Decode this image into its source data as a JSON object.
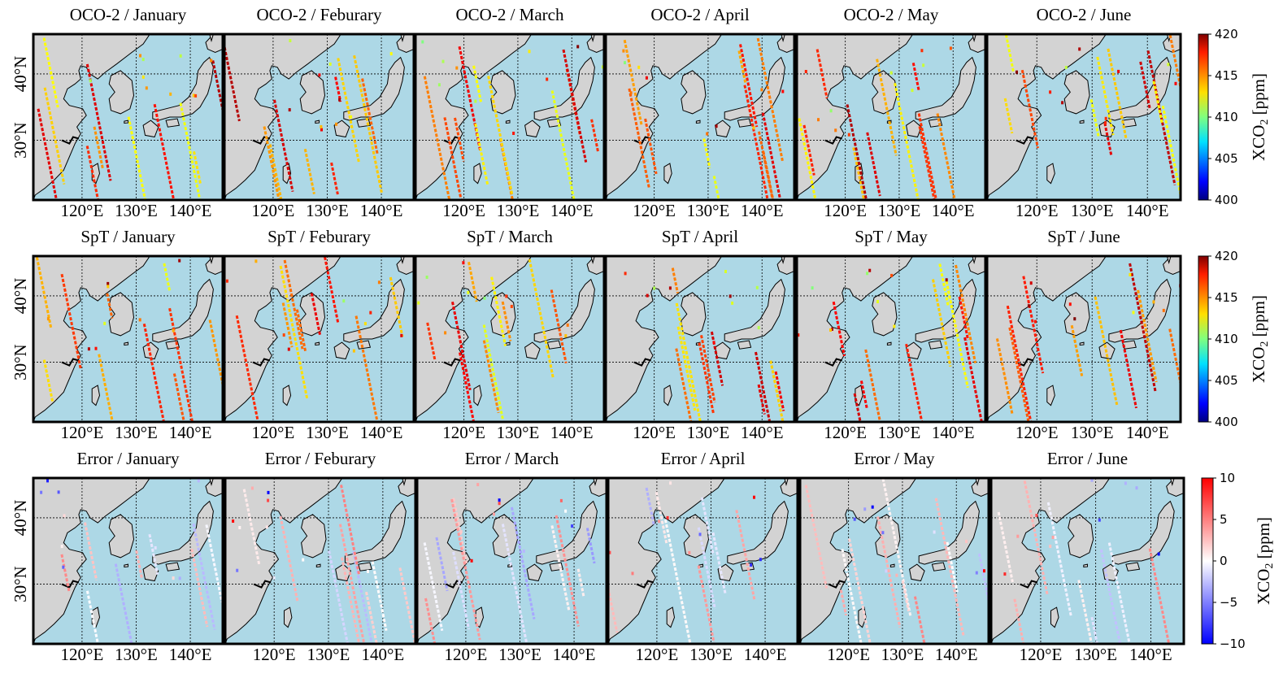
{
  "rows": [
    {
      "id": "oco2",
      "colormap": "jet",
      "titles": [
        "OCO-2 / January",
        "OCO-2 / Feburary",
        "OCO-2 / March",
        "OCO-2 / April",
        "OCO-2 / May",
        "OCO-2 / June"
      ],
      "show_lat": [
        true,
        false,
        false,
        false,
        false,
        false
      ]
    },
    {
      "id": "spt",
      "colormap": "jet",
      "titles": [
        "SpT / January",
        "SpT / Feburary",
        "SpT / March",
        "SpT / April",
        "SpT / May",
        "SpT / June"
      ],
      "show_lat": [
        true,
        false,
        false,
        false,
        false,
        false
      ]
    },
    {
      "id": "error",
      "colormap": "bwr",
      "titles": [
        "Error / January",
        "Error / Feburary",
        "Error / March",
        "Error / April",
        "Error / May",
        "Error / June"
      ],
      "show_lat": [
        true,
        false,
        false,
        false,
        false,
        false
      ]
    }
  ],
  "lon_ticks": [
    "120°E",
    "130°E",
    "140°E"
  ],
  "lat_ticks": [
    "40°N",
    "30°N"
  ],
  "colorbars": [
    {
      "row": "oco2",
      "ticks": [
        "420",
        "415",
        "410",
        "405",
        "400"
      ],
      "min": 400,
      "max": 420,
      "label_main": "XCO",
      "label_sub": "2",
      "label_unit": " [ppm]"
    },
    {
      "row": "spt",
      "ticks": [
        "420",
        "415",
        "410",
        "405",
        "400"
      ],
      "min": 400,
      "max": 420,
      "label_main": "XCO",
      "label_sub": "2",
      "label_unit": " [ppm]"
    },
    {
      "row": "error",
      "ticks": [
        "10",
        "5",
        "0",
        "−5",
        "−10"
      ],
      "min": -10,
      "max": 10,
      "label_main": "XCO",
      "label_sub": "2",
      "label_unit": " [ppm]"
    }
  ],
  "colors": {
    "land": "#d3d3d3",
    "ocean": "#add8e6",
    "coast": "#000000",
    "frame": "#000000",
    "grid": "#000000"
  },
  "map_extent": {
    "lon": [
      111,
      146
    ],
    "lat": [
      21,
      46
    ]
  },
  "features": {
    "shown": [
      "land",
      "ocean",
      "coastline",
      "graticule"
    ]
  }
}
